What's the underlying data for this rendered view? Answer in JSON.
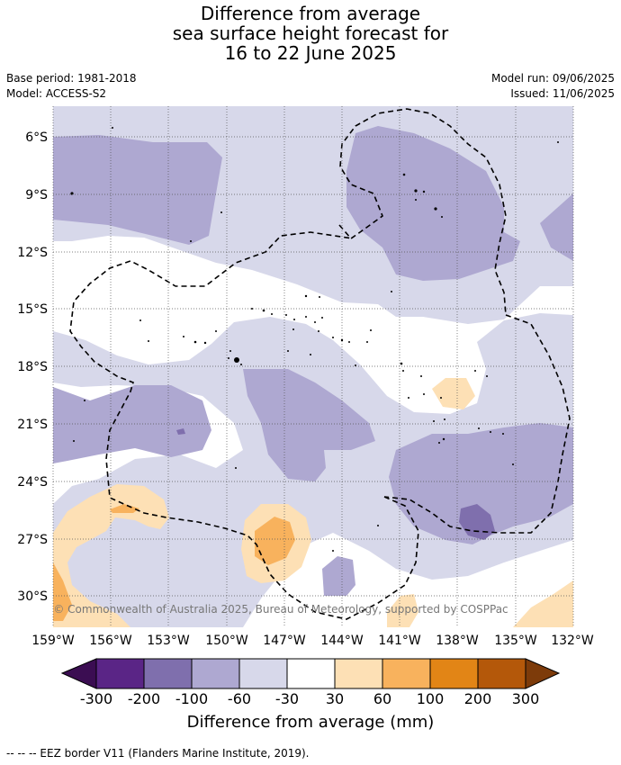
{
  "title": {
    "line1": "Difference from average",
    "line2": "sea surface height forecast for",
    "line3": "16 to 22 June 2025"
  },
  "meta": {
    "base_period": "Base period: 1981-2018",
    "model": "Model: ACCESS-S2",
    "model_run": "Model run: 09/06/2025",
    "issued": "Issued: 11/06/2025"
  },
  "map": {
    "copyright": "© Commonwealth of Australia 2025, Bureau of Meteorology, supported by COSPPac",
    "lat_labels": [
      "6°S",
      "9°S",
      "12°S",
      "15°S",
      "18°S",
      "21°S",
      "24°S",
      "27°S",
      "30°S"
    ],
    "lon_labels": [
      "159°W",
      "156°W",
      "153°W",
      "150°W",
      "147°W",
      "144°W",
      "141°W",
      "138°W",
      "135°W",
      "132°W"
    ]
  },
  "colorbar": {
    "title": "Difference from average (mm)",
    "labels": [
      "-300",
      "-200",
      "-100",
      "-60",
      "-30",
      "30",
      "60",
      "100",
      "200",
      "300"
    ],
    "colors": {
      "below_min": "#3b0d52",
      "neg_300_200": "#5a2586",
      "neg_200_100": "#7f6fad",
      "neg_100_60": "#aea8d1",
      "neg_60_30": "#d7d8ea",
      "neutral": "#ffffff",
      "pos_30_60": "#fde0b5",
      "pos_60_100": "#f8b25d",
      "pos_100_200": "#e28516",
      "pos_200_300": "#b4580a",
      "above_max": "#7d3b0a"
    }
  },
  "footnote": "--  --  -- EEZ border V11 (Flanders Marine Institute, 2019)."
}
